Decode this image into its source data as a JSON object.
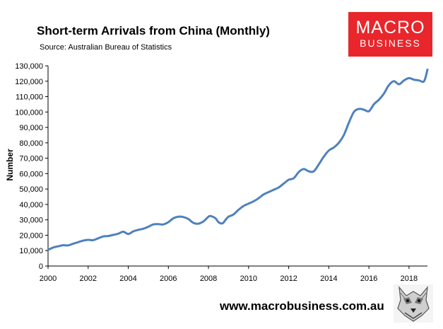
{
  "header": {
    "title": "Short-term Arrivals from China (Monthly)",
    "source": "Source: Australian Bureau of Statistics"
  },
  "logo": {
    "line1": "MACRO",
    "line2": "BUSINESS",
    "color": "#e8262b"
  },
  "footer": {
    "website": "www.macrobusiness.com.au",
    "emblem_icon": "wolf-emblem-icon"
  },
  "chart_data": {
    "type": "line",
    "title": "Short-term Arrivals from China (Monthly)",
    "xlabel": "",
    "ylabel": "Number",
    "xlim": [
      2000,
      2018.92
    ],
    "ylim": [
      0,
      130000
    ],
    "grid": false,
    "legend": "none",
    "line_color": "#4f81bd",
    "x_ticks": [
      2000,
      2002,
      2004,
      2006,
      2008,
      2010,
      2012,
      2014,
      2016,
      2018
    ],
    "x_tick_labels": [
      "2000",
      "2002",
      "2004",
      "2006",
      "2008",
      "2010",
      "2012",
      "2014",
      "2016",
      "2018"
    ],
    "y_ticks": [
      0,
      10000,
      20000,
      30000,
      40000,
      50000,
      60000,
      70000,
      80000,
      90000,
      100000,
      110000,
      120000,
      130000
    ],
    "y_tick_labels": [
      "0",
      "10,000",
      "20,000",
      "30,000",
      "40,000",
      "50,000",
      "60,000",
      "70,000",
      "80,000",
      "90,000",
      "100,000",
      "110,000",
      "120,000",
      "130,000"
    ],
    "series": [
      {
        "x": [
          2000.0,
          2000.25,
          2000.5,
          2000.75,
          2001.0,
          2001.25,
          2001.5,
          2001.75,
          2002.0,
          2002.25,
          2002.5,
          2002.75,
          2003.0,
          2003.25,
          2003.5,
          2003.75,
          2004.0,
          2004.25,
          2004.5,
          2004.75,
          2005.0,
          2005.25,
          2005.5,
          2005.75,
          2006.0,
          2006.25,
          2006.5,
          2006.75,
          2007.0,
          2007.25,
          2007.5,
          2007.75,
          2008.0,
          2008.1,
          2008.35,
          2008.5,
          2008.7,
          2008.85,
          2009.0,
          2009.25,
          2009.5,
          2009.75,
          2010.0,
          2010.25,
          2010.5,
          2010.75,
          2011.0,
          2011.25,
          2011.5,
          2011.75,
          2012.0,
          2012.25,
          2012.5,
          2012.75,
          2013.0,
          2013.25,
          2013.5,
          2013.75,
          2014.0,
          2014.25,
          2014.5,
          2014.75,
          2015.0,
          2015.25,
          2015.5,
          2015.75,
          2016.0,
          2016.25,
          2016.5,
          2016.75,
          2017.0,
          2017.25,
          2017.5,
          2017.75,
          2018.0,
          2018.25,
          2018.5,
          2018.75,
          2018.92
        ],
        "y": [
          10500,
          12000,
          12800,
          13500,
          13400,
          14500,
          15500,
          16500,
          17000,
          16800,
          18000,
          19200,
          19500,
          20200,
          21000,
          22300,
          20800,
          22500,
          23500,
          24200,
          25500,
          27000,
          27200,
          27000,
          28500,
          31000,
          32000,
          31800,
          30500,
          28000,
          27500,
          29000,
          32000,
          32500,
          31000,
          28500,
          27700,
          30000,
          32000,
          33500,
          36500,
          39000,
          40500,
          42000,
          44000,
          46500,
          48000,
          49500,
          51000,
          53500,
          56000,
          57000,
          61000,
          63000,
          61500,
          61500,
          66000,
          71000,
          75000,
          77000,
          80000,
          85000,
          93000,
          100000,
          102000,
          101500,
          100500,
          105000,
          108000,
          112000,
          117500,
          120000,
          118000,
          120500,
          122000,
          121000,
          120500,
          120000,
          127500
        ]
      }
    ]
  }
}
